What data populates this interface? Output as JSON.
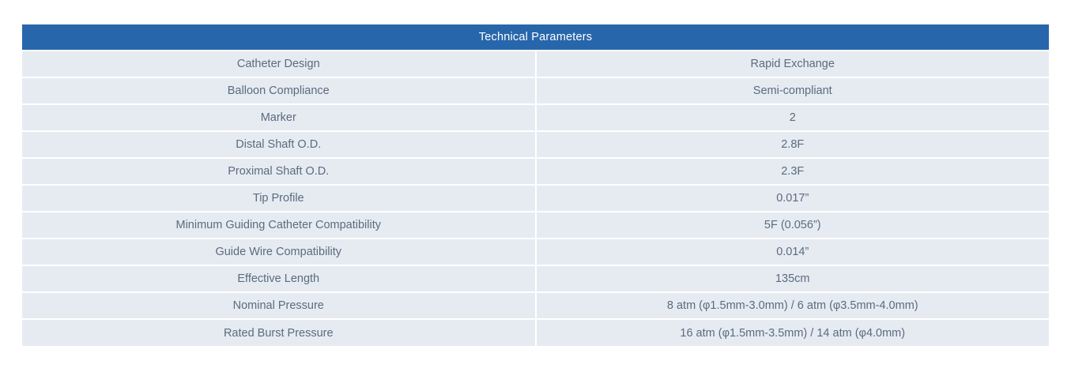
{
  "table": {
    "title": "Technical Parameters",
    "rows": [
      {
        "label": "Catheter Design",
        "value": "Rapid Exchange"
      },
      {
        "label": "Balloon Compliance",
        "value": "Semi-compliant"
      },
      {
        "label": "Marker",
        "value": "2"
      },
      {
        "label": "Distal Shaft O.D.",
        "value": "2.8F"
      },
      {
        "label": "Proximal Shaft O.D.",
        "value": "2.3F"
      },
      {
        "label": "Tip Profile",
        "value": "0.017”"
      },
      {
        "label": "Minimum Guiding Catheter Compatibility",
        "value": "5F (0.056”)"
      },
      {
        "label": "Guide Wire Compatibility",
        "value": "0.014”"
      },
      {
        "label": "Effective Length",
        "value": "135cm"
      },
      {
        "label": "Nominal Pressure",
        "value": "8 atm (φ1.5mm-3.0mm) / 6 atm (φ3.5mm-4.0mm)"
      },
      {
        "label": "Rated Burst Pressure",
        "value": "16 atm (φ1.5mm-3.5mm) / 14 atm (φ4.0mm)"
      }
    ]
  },
  "colors": {
    "header_bg": "#2766ab",
    "header_text": "#ffffff",
    "row_bg": "#e6ebf2",
    "text": "#5b6b7d",
    "gutter": "#ffffff"
  }
}
